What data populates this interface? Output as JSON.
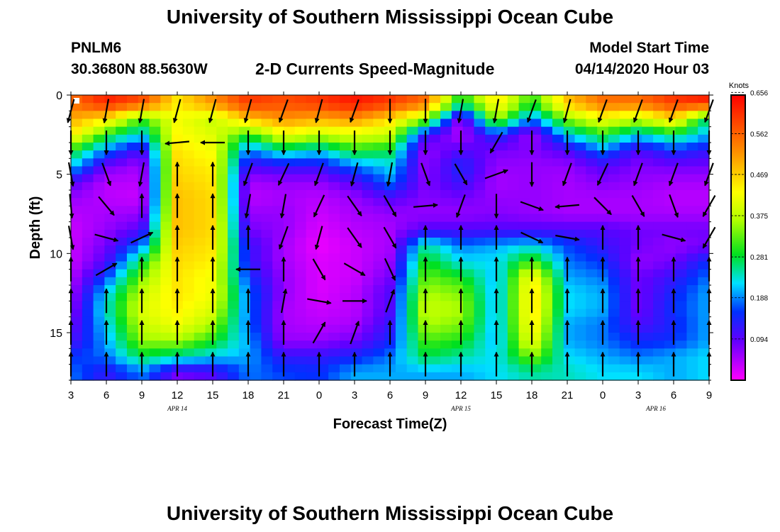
{
  "header": {
    "title": "University of Southern Mississippi Ocean Cube",
    "station": "PNLM6",
    "coordinates": "30.3680N 88.5630W",
    "subtitle": "2-D Currents Speed-Magnitude",
    "model_start_label": "Model Start Time",
    "model_start_value": "04/14/2020 Hour 03"
  },
  "footer": {
    "title": "University of Southern Mississippi Ocean Cube"
  },
  "chart_data": {
    "type": "heatmap",
    "title": "2-D Currents Speed-Magnitude",
    "xlabel": "Forecast Time(Z)",
    "ylabel": "Depth (ft)",
    "x_tick_labels": [
      "3",
      "6",
      "9",
      "12",
      "15",
      "18",
      "21",
      "0",
      "3",
      "6",
      "9",
      "12",
      "15",
      "18",
      "21",
      "0",
      "3",
      "6",
      "9"
    ],
    "date_labels": [
      {
        "label": "APR 14",
        "at_tick": 3
      },
      {
        "label": "APR 15",
        "at_tick": 11
      },
      {
        "label": "APR 16",
        "at_tick": 16.5
      }
    ],
    "y_ticks": [
      0,
      5,
      10,
      15
    ],
    "ylim": [
      18,
      0
    ],
    "colorbar": {
      "unit": "Knots",
      "tick_labels": [
        "0.656",
        "0.562",
        "0.469",
        "0.375",
        "0.281",
        "0.188",
        "0.094"
      ],
      "ticks": [
        0.656,
        0.562,
        0.469,
        0.375,
        0.281,
        0.188,
        0.094
      ],
      "range": [
        0.0,
        0.65
      ]
    },
    "depth_levels": [
      0,
      1,
      2,
      3,
      4,
      5,
      6,
      7,
      8,
      9,
      10,
      11,
      12,
      13,
      14,
      15,
      16,
      17
    ],
    "column_hours": [
      3,
      6,
      9,
      12,
      15,
      18,
      21,
      24,
      27,
      30,
      33,
      36,
      39,
      42,
      45,
      48,
      51,
      54,
      57
    ],
    "speed_grid_knots": [
      [
        0.55,
        0.62,
        0.58,
        0.45,
        0.52,
        0.6,
        0.58,
        0.6,
        0.63,
        0.6,
        0.55,
        0.28,
        0.45,
        0.3,
        0.48,
        0.55,
        0.55,
        0.6,
        0.62
      ],
      [
        0.5,
        0.45,
        0.32,
        0.42,
        0.38,
        0.48,
        0.52,
        0.5,
        0.52,
        0.46,
        0.36,
        0.05,
        0.36,
        0.18,
        0.35,
        0.42,
        0.38,
        0.46,
        0.25
      ],
      [
        0.45,
        0.3,
        0.22,
        0.43,
        0.4,
        0.3,
        0.42,
        0.38,
        0.4,
        0.38,
        0.12,
        0.04,
        0.15,
        0.05,
        0.22,
        0.3,
        0.22,
        0.28,
        0.2
      ],
      [
        0.3,
        0.18,
        0.1,
        0.45,
        0.42,
        0.18,
        0.25,
        0.22,
        0.3,
        0.28,
        0.06,
        0.1,
        0.08,
        0.07,
        0.1,
        0.18,
        0.1,
        0.15,
        0.12
      ],
      [
        0.22,
        0.08,
        0.05,
        0.46,
        0.44,
        0.1,
        0.12,
        0.12,
        0.18,
        0.22,
        0.06,
        0.14,
        0.06,
        0.06,
        0.06,
        0.1,
        0.07,
        0.08,
        0.08
      ],
      [
        0.1,
        0.04,
        0.04,
        0.47,
        0.45,
        0.05,
        0.06,
        0.06,
        0.1,
        0.18,
        0.07,
        0.12,
        0.05,
        0.06,
        0.05,
        0.07,
        0.06,
        0.05,
        0.05
      ],
      [
        0.06,
        0.04,
        0.03,
        0.48,
        0.46,
        0.04,
        0.05,
        0.04,
        0.06,
        0.1,
        0.07,
        0.08,
        0.06,
        0.06,
        0.05,
        0.05,
        0.05,
        0.04,
        0.04
      ],
      [
        0.04,
        0.05,
        0.06,
        0.48,
        0.46,
        0.06,
        0.06,
        0.03,
        0.05,
        0.06,
        0.06,
        0.06,
        0.07,
        0.06,
        0.05,
        0.05,
        0.05,
        0.05,
        0.05
      ],
      [
        0.03,
        0.06,
        0.1,
        0.48,
        0.46,
        0.08,
        0.06,
        0.02,
        0.04,
        0.05,
        0.1,
        0.1,
        0.1,
        0.1,
        0.1,
        0.1,
        0.08,
        0.08,
        0.08
      ],
      [
        0.03,
        0.08,
        0.18,
        0.47,
        0.45,
        0.12,
        0.05,
        0.01,
        0.03,
        0.05,
        0.25,
        0.18,
        0.2,
        0.22,
        0.16,
        0.12,
        0.08,
        0.06,
        0.08
      ],
      [
        0.03,
        0.1,
        0.28,
        0.46,
        0.44,
        0.12,
        0.05,
        0.02,
        0.03,
        0.06,
        0.3,
        0.22,
        0.22,
        0.32,
        0.18,
        0.15,
        0.06,
        0.08,
        0.15
      ],
      [
        0.04,
        0.16,
        0.34,
        0.45,
        0.42,
        0.15,
        0.06,
        0.02,
        0.03,
        0.08,
        0.33,
        0.3,
        0.2,
        0.44,
        0.2,
        0.18,
        0.08,
        0.12,
        0.18
      ],
      [
        0.05,
        0.22,
        0.38,
        0.45,
        0.42,
        0.18,
        0.06,
        0.02,
        0.04,
        0.1,
        0.36,
        0.34,
        0.2,
        0.46,
        0.22,
        0.2,
        0.08,
        0.14,
        0.2
      ],
      [
        0.06,
        0.24,
        0.4,
        0.44,
        0.4,
        0.18,
        0.05,
        0.03,
        0.04,
        0.1,
        0.38,
        0.36,
        0.2,
        0.46,
        0.22,
        0.2,
        0.08,
        0.15,
        0.2
      ],
      [
        0.08,
        0.22,
        0.38,
        0.42,
        0.36,
        0.18,
        0.05,
        0.04,
        0.05,
        0.12,
        0.36,
        0.34,
        0.2,
        0.45,
        0.2,
        0.18,
        0.1,
        0.14,
        0.2
      ],
      [
        0.1,
        0.2,
        0.35,
        0.36,
        0.3,
        0.2,
        0.06,
        0.06,
        0.08,
        0.14,
        0.32,
        0.3,
        0.2,
        0.42,
        0.2,
        0.18,
        0.14,
        0.15,
        0.2
      ],
      [
        0.15,
        0.18,
        0.28,
        0.25,
        0.22,
        0.2,
        0.12,
        0.12,
        0.14,
        0.18,
        0.28,
        0.25,
        0.22,
        0.35,
        0.22,
        0.2,
        0.18,
        0.2,
        0.22
      ],
      [
        0.18,
        0.12,
        0.18,
        0.08,
        0.1,
        0.18,
        0.16,
        0.15,
        0.2,
        0.2,
        0.2,
        0.2,
        0.22,
        0.25,
        0.24,
        0.22,
        0.22,
        0.2,
        0.22
      ]
    ],
    "vector_depths": [
      1,
      3,
      5,
      7,
      9,
      11,
      13,
      15,
      17
    ],
    "vector_direction_deg": [
      [
        195,
        190,
        190,
        195,
        195,
        195,
        200,
        195,
        200,
        180,
        180,
        190,
        190,
        200,
        195,
        200,
        200,
        200,
        200
      ],
      [
        180,
        180,
        180,
        265,
        270,
        180,
        180,
        180,
        180,
        180,
        180,
        180,
        210,
        180,
        180,
        180,
        180,
        180,
        180
      ],
      [
        170,
        160,
        190,
        0,
        0,
        200,
        205,
        200,
        195,
        190,
        160,
        150,
        70,
        180,
        200,
        205,
        200,
        200,
        200
      ],
      [
        175,
        140,
        0,
        0,
        0,
        190,
        190,
        205,
        145,
        150,
        85,
        200,
        180,
        110,
        265,
        135,
        150,
        160,
        210
      ],
      [
        170,
        105,
        65,
        0,
        0,
        0,
        200,
        195,
        145,
        150,
        0,
        0,
        0,
        115,
        100,
        0,
        0,
        105,
        210
      ],
      [
        0,
        60,
        0,
        0,
        0,
        270,
        0,
        150,
        120,
        155,
        0,
        0,
        0,
        0,
        0,
        0,
        0,
        0,
        0
      ],
      [
        0,
        0,
        0,
        0,
        0,
        0,
        10,
        100,
        90,
        20,
        0,
        0,
        0,
        0,
        0,
        0,
        0,
        0,
        0
      ],
      [
        0,
        0,
        0,
        0,
        0,
        0,
        0,
        30,
        20,
        0,
        0,
        0,
        0,
        0,
        0,
        0,
        0,
        0,
        0
      ],
      [
        0,
        0,
        0,
        0,
        0,
        0,
        0,
        0,
        0,
        0,
        0,
        0,
        0,
        0,
        0,
        0,
        0,
        0,
        0
      ]
    ]
  }
}
